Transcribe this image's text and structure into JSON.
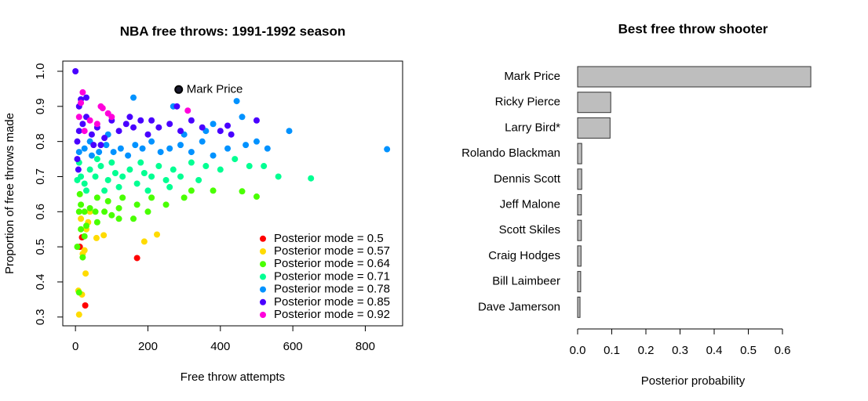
{
  "chart_data": [
    {
      "type": "scatter",
      "title": "NBA free throws: 1991-1992 season",
      "xlabel": "Free throw attempts",
      "ylabel": "Proportion of free throws made",
      "xlim": [
        -35,
        903
      ],
      "ylim": [
        0.275,
        1.029
      ],
      "xticks": [
        0,
        200,
        400,
        600,
        800
      ],
      "yticks": [
        0.3,
        0.4,
        0.5,
        0.6,
        0.7,
        0.8,
        0.9,
        {
          "value": 1,
          "label": "1.0"
        }
      ],
      "legend": "bottom-right",
      "annotation": {
        "text": "Mark Price",
        "x": 285,
        "y": 0.948
      },
      "series": [
        {
          "name": "Posterior mode = 0.5",
          "color": "#FF0000",
          "x": [
            170,
            27,
            18,
            12
          ],
          "y": [
            0.468,
            0.333,
            0.527,
            0.5
          ]
        },
        {
          "name": "Posterior mode = 0.57",
          "color": "#FFDB00",
          "x": [
            10,
            18,
            8,
            28,
            20,
            25,
            190,
            225,
            78,
            58,
            30,
            35,
            15,
            40
          ],
          "y": [
            0.307,
            0.364,
            0.375,
            0.424,
            0.48,
            0.49,
            0.515,
            0.535,
            0.533,
            0.525,
            0.55,
            0.57,
            0.58,
            0.6
          ]
        },
        {
          "name": "Posterior mode = 0.64",
          "color": "#49FF00",
          "x": [
            10,
            15,
            25,
            40,
            55,
            80,
            100,
            120,
            170,
            160,
            200,
            250,
            300,
            320,
            380,
            460,
            500,
            12,
            60,
            90,
            130,
            210,
            30,
            20,
            10,
            5,
            25,
            15,
            120,
            60
          ],
          "y": [
            0.6,
            0.62,
            0.6,
            0.61,
            0.6,
            0.6,
            0.59,
            0.58,
            0.62,
            0.58,
            0.6,
            0.62,
            0.64,
            0.66,
            0.66,
            0.658,
            0.643,
            0.65,
            0.64,
            0.63,
            0.64,
            0.64,
            0.56,
            0.47,
            0.37,
            0.5,
            0.53,
            0.55,
            0.61,
            0.57
          ]
        },
        {
          "name": "Posterior mode = 0.71",
          "color": "#00FF92",
          "x": [
            5,
            15,
            25,
            40,
            55,
            70,
            90,
            110,
            130,
            150,
            170,
            190,
            210,
            230,
            250,
            270,
            290,
            340,
            400,
            480,
            560,
            650,
            520,
            440,
            360,
            320,
            10,
            30,
            80,
            120,
            200,
            260,
            180,
            60,
            100
          ],
          "y": [
            0.69,
            0.7,
            0.68,
            0.72,
            0.7,
            0.73,
            0.69,
            0.71,
            0.7,
            0.72,
            0.68,
            0.71,
            0.7,
            0.73,
            0.69,
            0.72,
            0.7,
            0.69,
            0.72,
            0.73,
            0.7,
            0.695,
            0.73,
            0.75,
            0.73,
            0.74,
            0.74,
            0.66,
            0.66,
            0.67,
            0.66,
            0.67,
            0.74,
            0.75,
            0.74
          ]
        },
        {
          "name": "Posterior mode = 0.78",
          "color": "#0092FF",
          "x": [
            10,
            25,
            45,
            65,
            85,
            105,
            125,
            145,
            165,
            185,
            210,
            235,
            260,
            290,
            320,
            350,
            380,
            420,
            470,
            530,
            590,
            500,
            860,
            160,
            445,
            270,
            380,
            460,
            40,
            300,
            360,
            90
          ],
          "y": [
            0.77,
            0.78,
            0.76,
            0.77,
            0.79,
            0.77,
            0.78,
            0.76,
            0.79,
            0.78,
            0.8,
            0.77,
            0.78,
            0.79,
            0.77,
            0.8,
            0.76,
            0.78,
            0.79,
            0.78,
            0.83,
            0.8,
            0.778,
            0.925,
            0.915,
            0.9,
            0.85,
            0.87,
            0.8,
            0.82,
            0.83,
            0.82
          ]
        },
        {
          "name": "Posterior mode = 0.85",
          "color": "#4900FF",
          "x": [
            5,
            10,
            20,
            30,
            45,
            60,
            80,
            100,
            120,
            140,
            160,
            180,
            200,
            230,
            260,
            290,
            320,
            350,
            400,
            430,
            420,
            500,
            10,
            30,
            15,
            280,
            150,
            210,
            5,
            8,
            50,
            70,
            0
          ],
          "y": [
            0.8,
            0.83,
            0.85,
            0.87,
            0.82,
            0.84,
            0.81,
            0.86,
            0.83,
            0.85,
            0.84,
            0.86,
            0.82,
            0.84,
            0.85,
            0.83,
            0.86,
            0.84,
            0.83,
            0.82,
            0.845,
            0.86,
            0.9,
            0.925,
            0.92,
            0.9,
            0.87,
            0.86,
            0.75,
            0.72,
            0.79,
            0.79,
            1
          ]
        },
        {
          "name": "Posterior mode = 0.92",
          "color": "#FF00DB",
          "x": [
            15,
            20,
            70,
            75,
            100,
            310,
            40,
            60,
            25,
            90,
            10
          ],
          "y": [
            0.91,
            0.94,
            0.9,
            0.895,
            0.87,
            0.888,
            0.86,
            0.85,
            0.83,
            0.88,
            0.87
          ]
        }
      ]
    },
    {
      "type": "barh",
      "title": "Best free throw shooter",
      "xlabel": "Posterior probability",
      "categories": [
        "Mark Price",
        "Ricky Pierce",
        "Larry Bird*",
        "Rolando Blackman",
        "Dennis Scott",
        "Jeff Malone",
        "Scott Skiles",
        "Craig Hodges",
        "Bill Laimbeer",
        "Dave Jamerson"
      ],
      "values": [
        0.683,
        0.097,
        0.095,
        0.012,
        0.012,
        0.011,
        0.011,
        0.01,
        0.009,
        0.007
      ],
      "color": "#BEBEBE",
      "xlim": [
        0,
        0.7
      ],
      "xticks": [
        {
          "value": 0,
          "label": "0.0"
        },
        0.1,
        0.2,
        0.3,
        0.4,
        0.5,
        0.6
      ]
    }
  ]
}
